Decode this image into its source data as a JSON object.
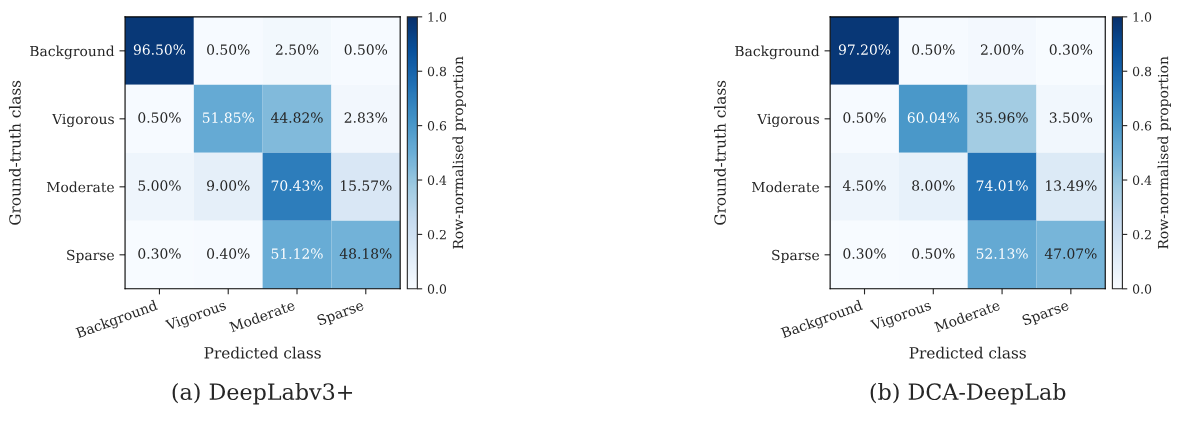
{
  "chart_data": [
    {
      "type": "heatmap",
      "subtitle": "(a) DeepLabv3+",
      "xlabel": "Predicted class",
      "ylabel": "Ground-truth class",
      "clabel": "Row-normalised proportion",
      "categories": [
        "Background",
        "Vigorous",
        "Moderate",
        "Sparse"
      ],
      "y_categories": [
        "Background",
        "Vigorous",
        "Moderate",
        "Sparse"
      ],
      "cells": [
        [
          0.965,
          0.005,
          0.025,
          0.005
        ],
        [
          0.005,
          0.5185,
          0.4482,
          0.0283
        ],
        [
          0.05,
          0.09,
          0.7043,
          0.1557
        ],
        [
          0.003,
          0.004,
          0.5112,
          0.4818
        ]
      ],
      "cell_labels": [
        [
          "96.50%",
          "0.50%",
          "2.50%",
          "0.50%"
        ],
        [
          "0.50%",
          "51.85%",
          "44.82%",
          "2.83%"
        ],
        [
          "5.00%",
          "9.00%",
          "70.43%",
          "15.57%"
        ],
        [
          "0.30%",
          "0.40%",
          "51.12%",
          "48.18%"
        ]
      ],
      "clim": [
        0,
        1
      ],
      "cticks": [
        {
          "value": 0,
          "label": "0.0"
        },
        {
          "value": 0.2,
          "label": "0.2"
        },
        {
          "value": 0.4,
          "label": "0.4"
        },
        {
          "value": 0.6,
          "label": "0.6"
        },
        {
          "value": 0.8,
          "label": "0.8"
        },
        {
          "value": 1,
          "label": "1.0"
        }
      ]
    },
    {
      "type": "heatmap",
      "subtitle": "(b) DCA-DeepLab",
      "xlabel": "Predicted class",
      "ylabel": "Ground-truth class",
      "clabel": "Row-normalised proportion",
      "categories": [
        "Background",
        "Vigorous",
        "Moderate",
        "Sparse"
      ],
      "y_categories": [
        "Background",
        "Vigorous",
        "Moderate",
        "Sparse"
      ],
      "cells": [
        [
          0.972,
          0.005,
          0.02,
          0.003
        ],
        [
          0.005,
          0.6004,
          0.3596,
          0.035
        ],
        [
          0.045,
          0.08,
          0.7401,
          0.1349
        ],
        [
          0.003,
          0.005,
          0.5213,
          0.4707
        ]
      ],
      "cell_labels": [
        [
          "97.20%",
          "0.50%",
          "2.00%",
          "0.30%"
        ],
        [
          "0.50%",
          "60.04%",
          "35.96%",
          "3.50%"
        ],
        [
          "4.50%",
          "8.00%",
          "74.01%",
          "13.49%"
        ],
        [
          "0.30%",
          "0.50%",
          "52.13%",
          "47.07%"
        ]
      ],
      "clim": [
        0,
        1
      ],
      "cticks": [
        {
          "value": 0,
          "label": "0.0"
        },
        {
          "value": 0.2,
          "label": "0.2"
        },
        {
          "value": 0.4,
          "label": "0.4"
        },
        {
          "value": 0.6,
          "label": "0.6"
        },
        {
          "value": 0.8,
          "label": "0.8"
        },
        {
          "value": 1,
          "label": "1.0"
        }
      ]
    }
  ]
}
